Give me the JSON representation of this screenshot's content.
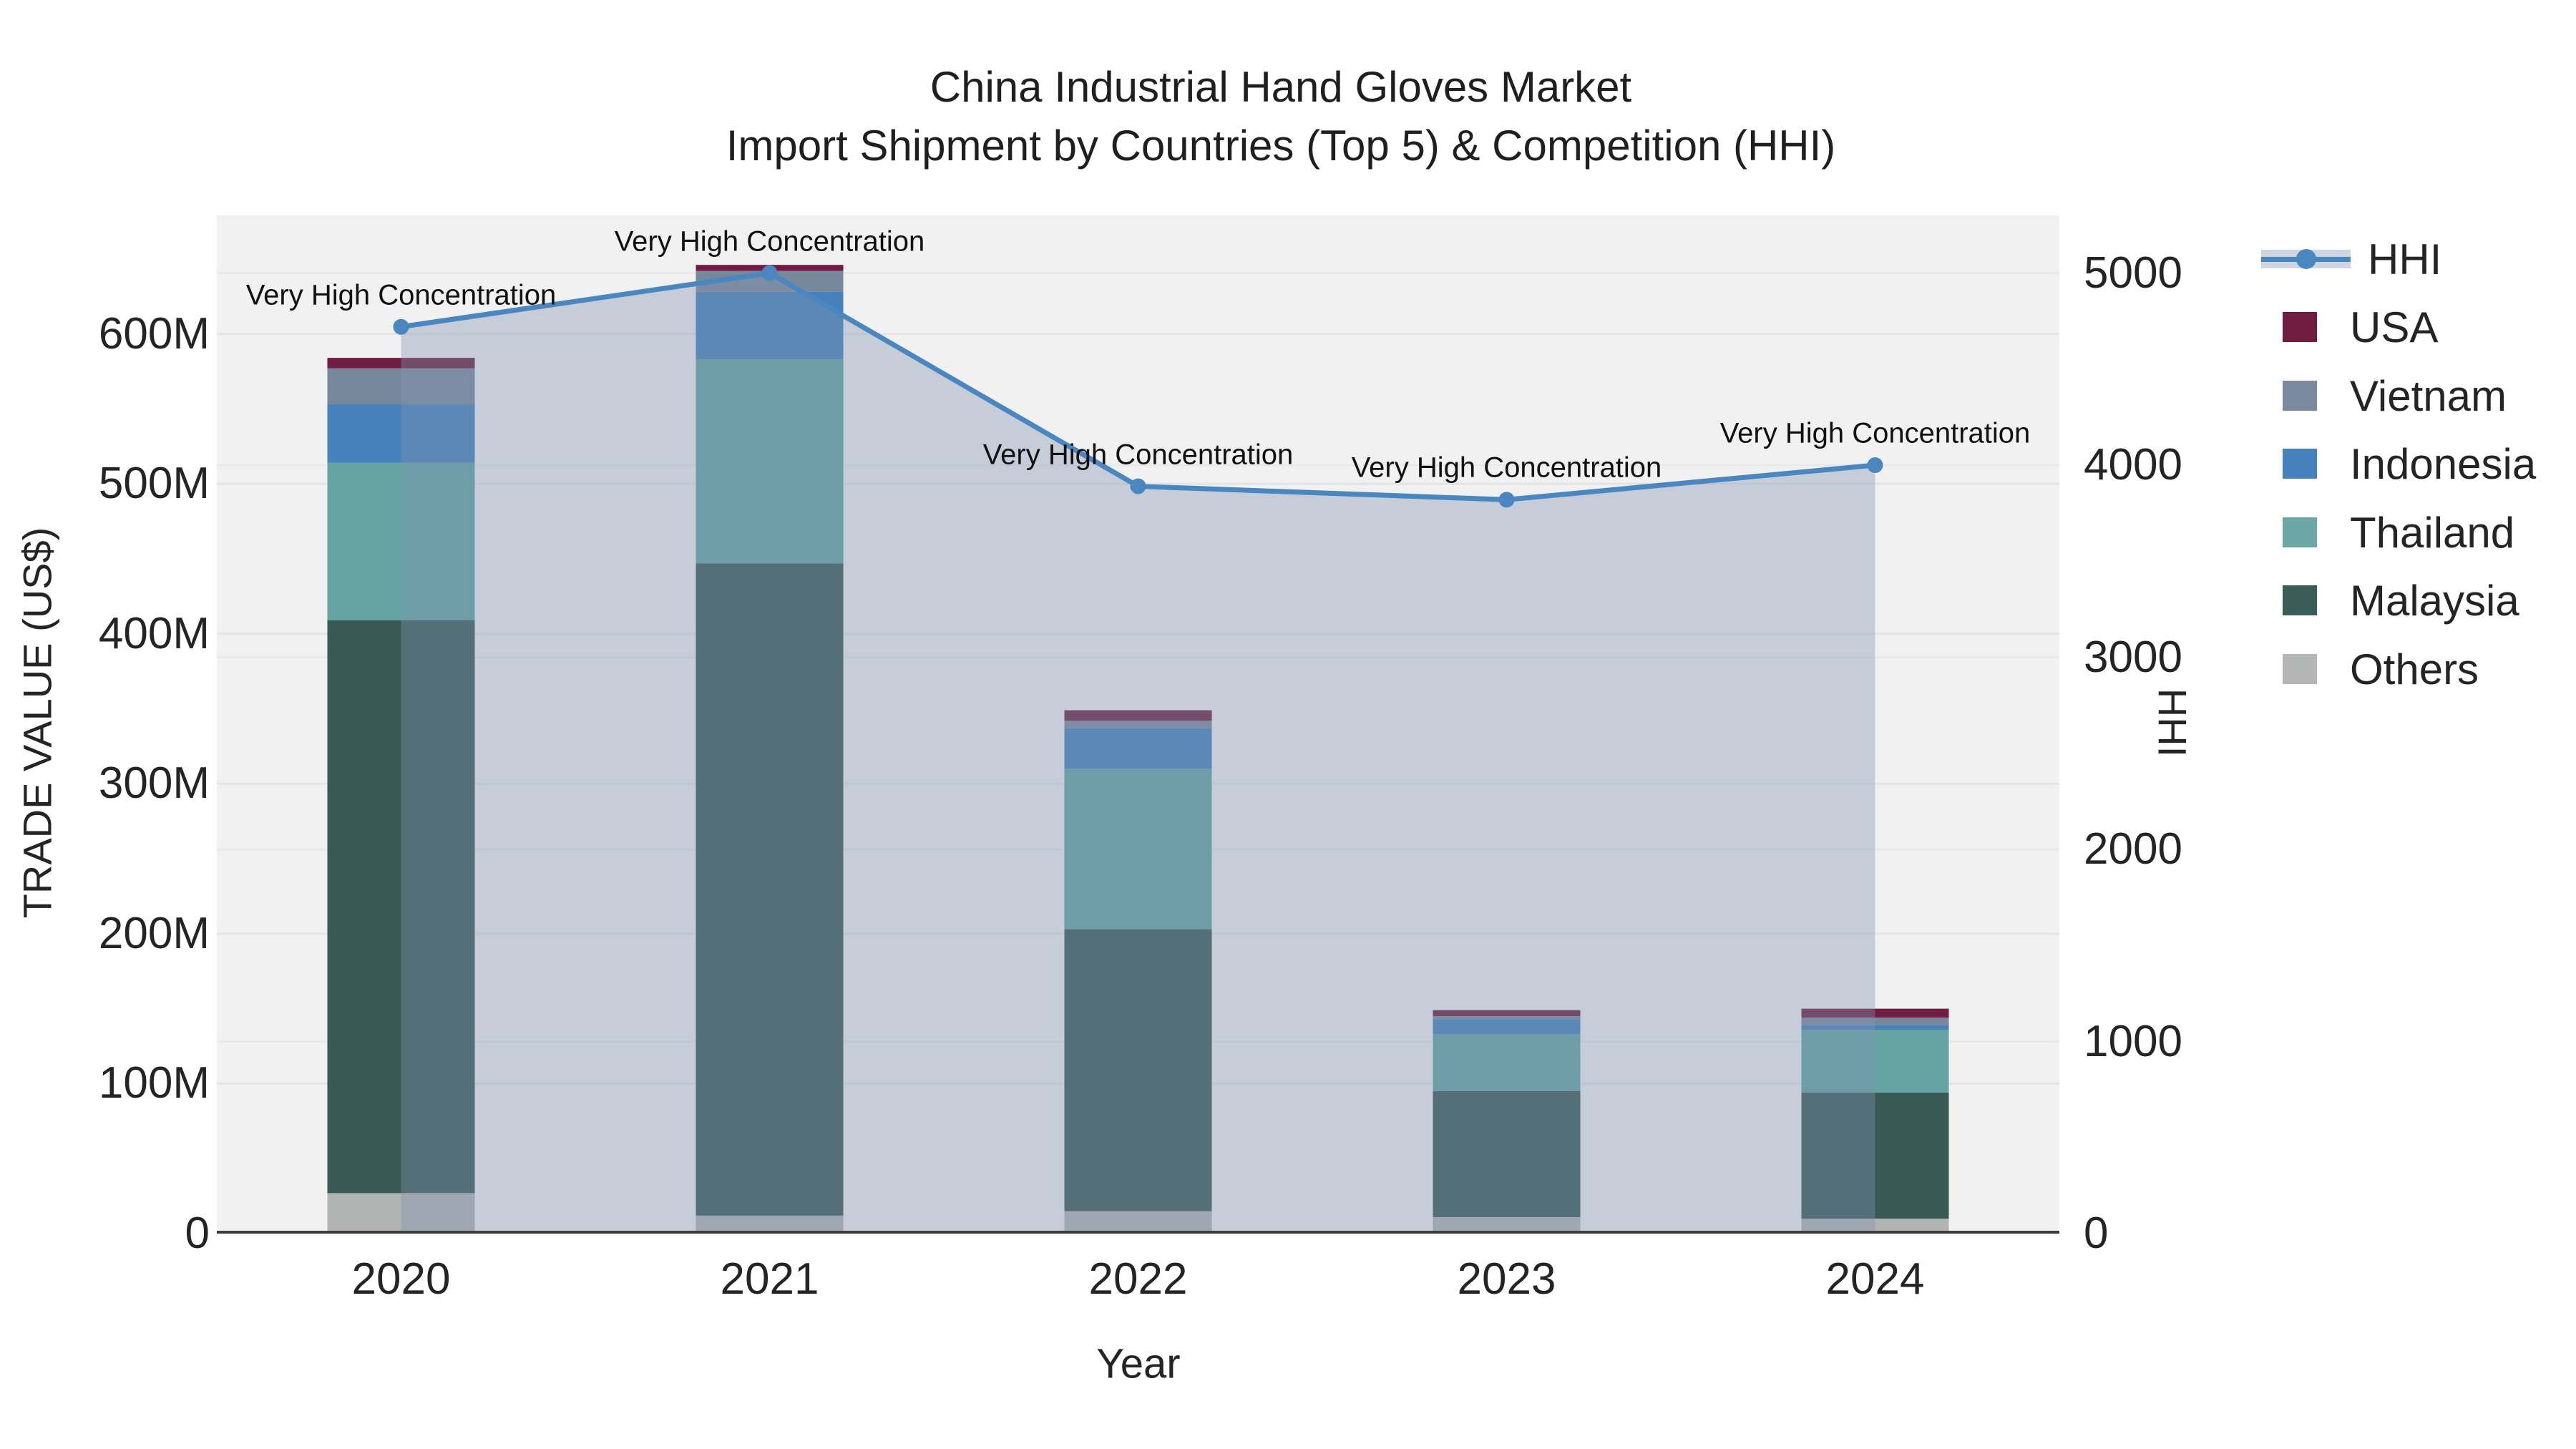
{
  "title": {
    "line1": "China Industrial Hand Gloves Market",
    "line2": "Import Shipment by Countries (Top 5) & Competition (HHI)"
  },
  "chart_data": {
    "type": "bar",
    "subtype": "stacked-bar-with-line",
    "categories": [
      "2020",
      "2021",
      "2022",
      "2023",
      "2024"
    ],
    "values_unit": "million US$",
    "series": [
      {
        "name": "Others",
        "type": "bar",
        "color": "#b1b4b2",
        "values": [
          27,
          12,
          15,
          11,
          10
        ]
      },
      {
        "name": "Malaysia",
        "type": "bar",
        "color": "#395955",
        "values": [
          382,
          435,
          188,
          84,
          84
        ]
      },
      {
        "name": "Thailand",
        "type": "bar",
        "color": "#65a4a2",
        "values": [
          105,
          136,
          107,
          38,
          42
        ]
      },
      {
        "name": "Indonesia",
        "type": "bar",
        "color": "#4681bb",
        "values": [
          39,
          45,
          27,
          10,
          3
        ]
      },
      {
        "name": "Vietnam",
        "type": "bar",
        "color": "#78889c",
        "values": [
          24,
          14,
          5,
          2,
          5
        ]
      },
      {
        "name": "USA",
        "type": "bar",
        "color": "#701d41",
        "values": [
          7,
          4,
          7,
          4,
          6
        ]
      }
    ],
    "bar_totals_million": [
      584,
      646,
      349,
      149,
      150
    ],
    "hhi": {
      "name": "HHI",
      "type": "line+area",
      "color": "#4a87c0",
      "area_color": "rgba(128,146,176,0.38)",
      "values": [
        4720,
        5000,
        3890,
        3820,
        4000
      ]
    },
    "annotations": [
      {
        "text": "Very High Concentration"
      },
      {
        "text": "Very High Concentration"
      },
      {
        "text": "Very High Concentration"
      },
      {
        "text": "Very High Concentration"
      },
      {
        "text": "Very High Concentration"
      }
    ],
    "left_axis": {
      "title": "TRADE VALUE (US$)",
      "tick_labels": [
        "0",
        "100M",
        "200M",
        "300M",
        "400M",
        "500M",
        "600M"
      ],
      "tick_values_million": [
        0,
        100,
        200,
        300,
        400,
        500,
        600
      ],
      "range_million": [
        0,
        679
      ],
      "grid": true
    },
    "right_axis": {
      "title": "HHI",
      "tick_labels": [
        "0",
        "1000",
        "2000",
        "3000",
        "4000",
        "5000"
      ],
      "tick_values": [
        0,
        1000,
        2000,
        3000,
        4000,
        5000
      ],
      "range": [
        0,
        5300
      ],
      "grid": true
    },
    "x_axis": {
      "title": "Year",
      "tick_labels": [
        "2020",
        "2021",
        "2022",
        "2023",
        "2024"
      ]
    },
    "legend_position": "right"
  },
  "legend": {
    "items": [
      {
        "label": "HHI",
        "type": "line",
        "color": "#4a87c0"
      },
      {
        "label": "USA",
        "type": "swatch",
        "color": "#701d41"
      },
      {
        "label": "Vietnam",
        "type": "swatch",
        "color": "#7a899d"
      },
      {
        "label": "Indonesia",
        "type": "swatch",
        "color": "#4681bb"
      },
      {
        "label": "Thailand",
        "type": "swatch",
        "color": "#6aa7a5"
      },
      {
        "label": "Malaysia",
        "type": "swatch",
        "color": "#3a5c58"
      },
      {
        "label": "Others",
        "type": "swatch",
        "color": "#b3b6b4"
      }
    ]
  },
  "style": {
    "plot_bg": "#f1f1f2",
    "grid_color": "#e4e4e8",
    "axis_line_color": "#3d3d3d",
    "text_color": "#242424"
  }
}
